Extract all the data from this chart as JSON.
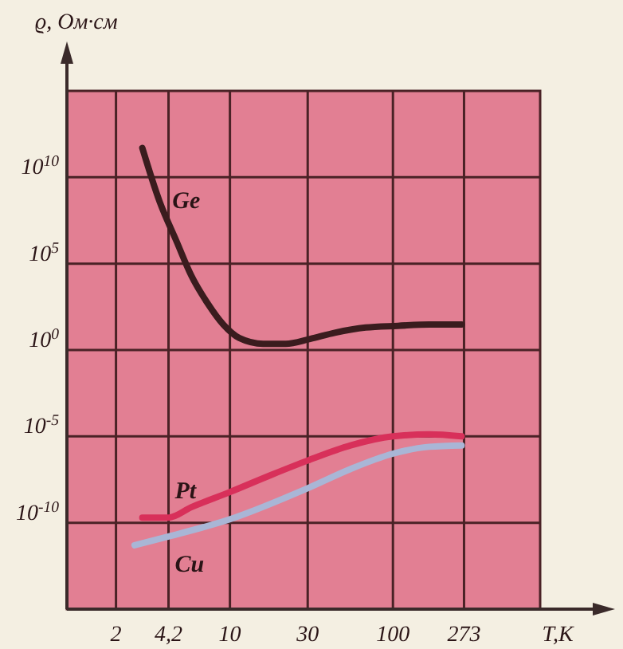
{
  "chart_data": {
    "type": "line",
    "xlabel": "T,K",
    "ylabel": "ϱ, Ом·см",
    "log": "xy",
    "grid": true,
    "xlim": [
      1,
      800
    ],
    "ylim": [
      1e-15,
      1000000000000000.0
    ],
    "xticks": [
      2,
      {
        "value": 4.2,
        "label": "4,2"
      },
      10,
      30,
      100,
      273
    ],
    "yticks": [
      {
        "value": 1e-10,
        "label": "10$^{-10}$"
      },
      {
        "value": 1e-05,
        "label": "10$^{-5}$"
      },
      {
        "value": 1,
        "label": "10$^{0}$"
      },
      {
        "value": 100000.0,
        "label": "10$^{5}$"
      },
      {
        "value": 10000000000.0,
        "label": "10$^{10}$"
      }
    ],
    "series": [
      {
        "name": "Ge",
        "color": "#3a1c1e",
        "x": [
          2.9,
          3.7,
          4.7,
          5.8,
          7.3,
          9.1,
          11.4,
          16,
          22,
          31,
          44,
          68,
          107,
          167,
          264
        ],
        "values": [
          500000000000.0,
          400000000.0,
          2000000.0,
          20000.0,
          500,
          30,
          5,
          2.3,
          2.3,
          4.4,
          10,
          20,
          25,
          30,
          30
        ]
      },
      {
        "name": "Pt",
        "color": "#d8305a",
        "x": [
          2.9,
          4.2,
          5.8,
          10,
          18,
          30,
          55,
          100,
          167,
          264
        ],
        "values": [
          2e-10,
          2e-10,
          8e-10,
          6e-09,
          6e-08,
          4e-07,
          3e-06,
          1e-05,
          1.3e-05,
          1e-05
        ]
      },
      {
        "name": "Cu",
        "color": "#a9b6d6",
        "x": [
          2.6,
          4.2,
          10,
          30,
          55,
          100,
          167,
          264
        ],
        "values": [
          5e-12,
          1.6e-11,
          1.6e-10,
          1e-08,
          1.3e-07,
          1e-06,
          2.5e-06,
          3e-06
        ]
      }
    ]
  }
}
